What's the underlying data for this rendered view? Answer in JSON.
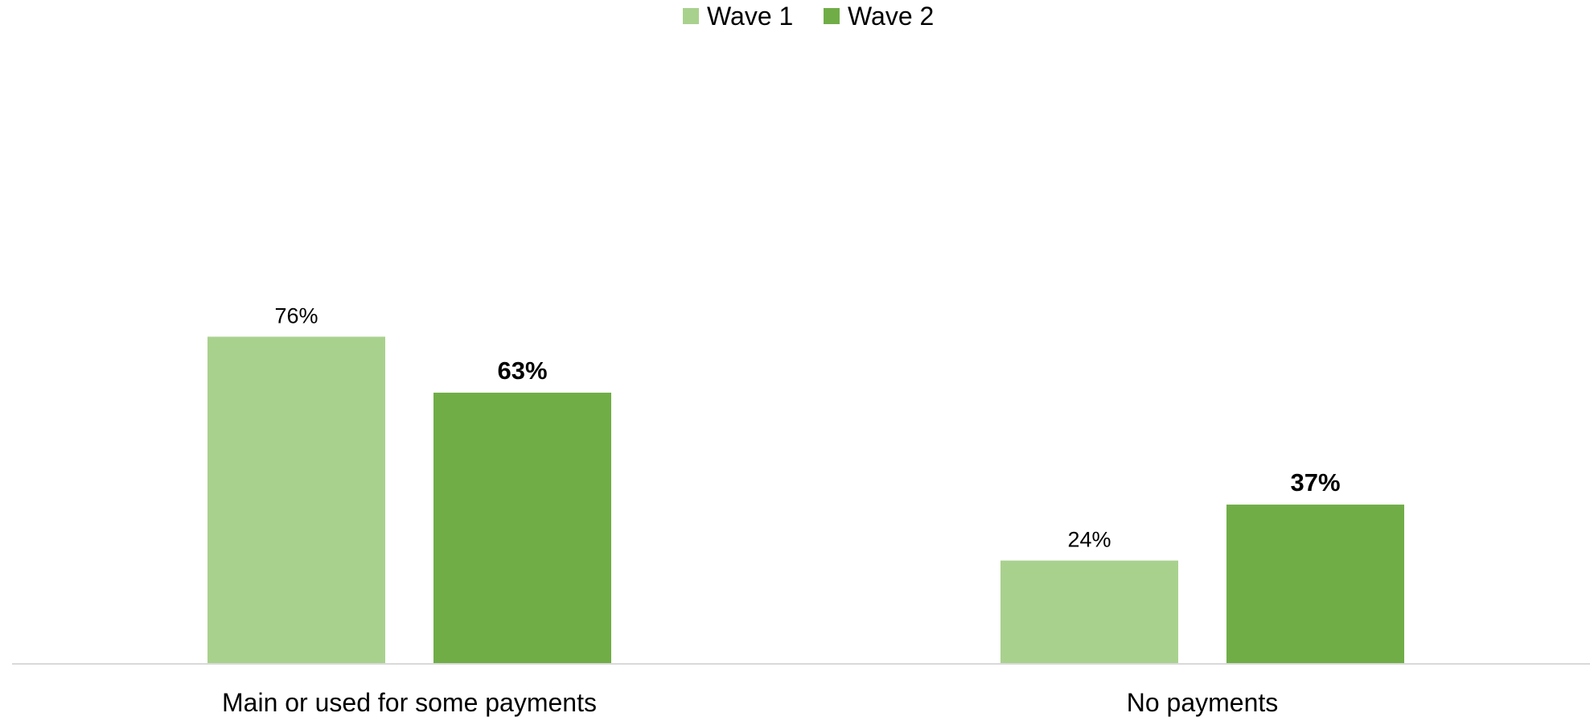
{
  "chart_data": {
    "type": "bar",
    "categories": [
      "Main or used for some payments",
      "No payments"
    ],
    "series": [
      {
        "name": "Wave 1",
        "values": [
          76,
          24
        ],
        "color": "#a9d18e",
        "labels": [
          "76%",
          "24%"
        ],
        "label_weight": "normal"
      },
      {
        "name": "Wave 2",
        "values": [
          63,
          37
        ],
        "color": "#70ad47",
        "labels": [
          "63%",
          "37%"
        ],
        "label_weight": "bold"
      }
    ],
    "legend": "top-center",
    "grid": false,
    "ylim": [
      0,
      100
    ],
    "axis_color": "#d9d9d9"
  }
}
